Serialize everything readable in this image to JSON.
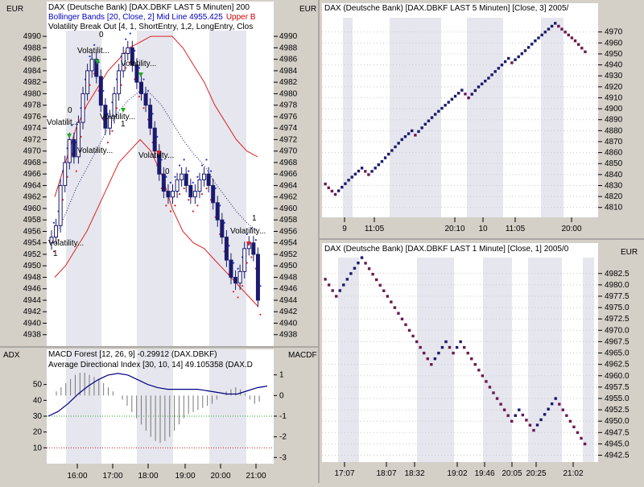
{
  "colors": {
    "panel_bg": "#d4d0c8",
    "plot_bg": "#ffffff",
    "band_shade": "#e6e6ee",
    "price": "#1a1a6e",
    "bollinger": "#dd2222",
    "volatility": "#22aa22",
    "macd": "#777777",
    "adx": "#000080",
    "blue_text": "#0000c0",
    "red_text": "#cc0000"
  },
  "chart_data": [
    {
      "id": "left-price",
      "type": "candlestick",
      "unit_label": "EUR",
      "legend": [
        {
          "text": "DAX (Deutsche Bank) [DAX.DBKF LAST 5 Minuten] 200",
          "color": "blue_text"
        },
        {
          "text": "Bollinger Bands [20, Close, 2] Mid Line 4955.425",
          "color": "blue_text",
          "extra": "Upper B",
          "extra_color": "red_text"
        },
        {
          "text": "Volatility Break Out [4, 1, ShortEntry, 1,2, LongEntry, Clos",
          "color": "black"
        }
      ],
      "ylim": [
        4936,
        4991
      ],
      "yticks": [
        4938,
        4940,
        4942,
        4944,
        4946,
        4948,
        4950,
        4952,
        4954,
        4956,
        4958,
        4960,
        4962,
        4964,
        4966,
        4968,
        4970,
        4972,
        4974,
        4976,
        4978,
        4980,
        4982,
        4984,
        4986,
        4988,
        4990
      ],
      "xlim": [
        0,
        68
      ],
      "close": [
        4955,
        4957,
        4964,
        4968,
        4972,
        4969,
        4975,
        4980,
        4984,
        4986,
        4983,
        4978,
        4974,
        4976,
        4980,
        4984,
        4987,
        4988,
        4985,
        4982,
        4980,
        4978,
        4974,
        4970,
        4966,
        4963,
        4962,
        4963,
        4965,
        4966,
        4964,
        4962,
        4963,
        4965,
        4966,
        4964,
        4961,
        4958,
        4955,
        4951,
        4948,
        4947,
        4949,
        4953,
        4954,
        4952,
        4944
      ],
      "upper_band": [
        4962,
        4968,
        4974,
        4978,
        4981,
        4984,
        4986,
        4988,
        4989,
        4990,
        4990,
        4990,
        4988,
        4985,
        4982,
        4978,
        4975,
        4972,
        4970,
        4969
      ],
      "lower_band": [
        4948,
        4950,
        4953,
        4956,
        4960,
        4964,
        4968,
        4970,
        4972,
        4970,
        4966,
        4960,
        4956,
        4954,
        4953,
        4951,
        4949,
        4947,
        4945,
        4943
      ],
      "signal_labels": [
        "0",
        "Volatilit...",
        "Volatility...",
        "0",
        "Volatilit...",
        "Volatility...",
        "1",
        "Volatility...",
        "0",
        "Volatility...",
        "Volatility...",
        "1",
        "Volatility...",
        "1"
      ],
      "x_ticks": [
        "16:00",
        "17:00",
        "18:00",
        "19:00",
        "20:00",
        "21:00"
      ]
    },
    {
      "id": "left-indicator",
      "type": "line",
      "left_axis_label": "ADX",
      "right_axis_label": "MACDF",
      "legend": [
        {
          "text": "MACD Forest [12, 26, 9] -0.29912 (DAX.DBKF)",
          "color": "blue_text"
        },
        {
          "text": "Average Directional Index [30, 10, 14] 49.105358 (DAX.D",
          "color": "blue_text"
        }
      ],
      "adx_ylim": [
        0,
        60
      ],
      "adx_ticks": [
        10,
        20,
        30,
        40,
        50
      ],
      "macd_ylim": [
        -3.3,
        1.3
      ],
      "macd_ticks": [
        1,
        0,
        -1,
        -2,
        -3
      ],
      "adx": [
        30,
        33,
        38,
        44,
        49,
        53,
        56,
        57,
        56,
        53,
        50,
        48,
        47,
        47,
        47,
        47,
        46,
        45,
        44,
        44,
        46,
        48,
        49
      ],
      "macd_forest": [
        0.2,
        0.4,
        0.6,
        0.8,
        1.0,
        1.1,
        1.1,
        1.0,
        0.9,
        0.8,
        0.6,
        0.4,
        0.2,
        0.0,
        -0.2,
        -0.5,
        -0.8,
        -1.1,
        -1.4,
        -1.7,
        -2.0,
        -2.2,
        -2.3,
        -2.2,
        -2.0,
        -1.7,
        -1.4,
        -1.1,
        -0.9,
        -0.8,
        -0.7,
        -0.6,
        -0.5,
        -0.4,
        -0.2,
        0.0,
        0.2,
        0.3,
        0.4,
        0.3,
        0.1,
        -0.2,
        -0.4,
        -0.3
      ]
    },
    {
      "id": "right-top",
      "type": "point-and-figure",
      "unit_label": "EUR",
      "legend": [
        {
          "text": "DAX (Deutsche Bank) [DAX.DBKF LAST 5 Minuten] [Close, 3] 2005/",
          "color": "black"
        }
      ],
      "ylim": [
        4801,
        4983
      ],
      "yticks": [
        4810,
        4820,
        4830,
        4840,
        4850,
        4860,
        4870,
        4880,
        4890,
        4900,
        4910,
        4920,
        4930,
        4940,
        4950,
        4960,
        4970
      ],
      "x_ticks": [
        "9",
        "11:05",
        "20:10",
        "10",
        "11:05",
        "20:00"
      ],
      "path": [
        4835,
        4828,
        4822,
        4835,
        4846,
        4840,
        4852,
        4862,
        4872,
        4880,
        4876,
        4886,
        4895,
        4906,
        4917,
        4910,
        4920,
        4928,
        4937,
        4946,
        4942,
        4953,
        4962,
        4970,
        4978,
        4970,
        4962,
        4952
      ]
    },
    {
      "id": "right-bottom",
      "type": "point-and-figure",
      "unit_label": "EUR",
      "legend": [
        {
          "text": "DAX (Deutsche Bank) [DAX.DBKF LAST 1 Minute] [Close, 1] 2005/0",
          "color": "black"
        }
      ],
      "ylim": [
        4941,
        4986
      ],
      "yticks": [
        4942.5,
        4945.0,
        4947.5,
        4950.0,
        4952.5,
        4955.0,
        4957.5,
        4960.0,
        4962.5,
        4965.0,
        4967.5,
        4970.0,
        4972.5,
        4975.0,
        4977.5,
        4980.0,
        4982.5
      ],
      "x_ticks": [
        "17:07",
        "18:07",
        "18:32",
        "19:02",
        "19:46",
        "20:05",
        "20:25",
        "21:02"
      ],
      "path": [
        4982.5,
        4977.5,
        4982.5,
        4986,
        4977.5,
        4975,
        4970,
        4962.5,
        4967.5,
        4965,
        4967.5,
        4965,
        4960,
        4955,
        4950,
        4952.5,
        4948,
        4955,
        4950,
        4945
      ]
    }
  ]
}
